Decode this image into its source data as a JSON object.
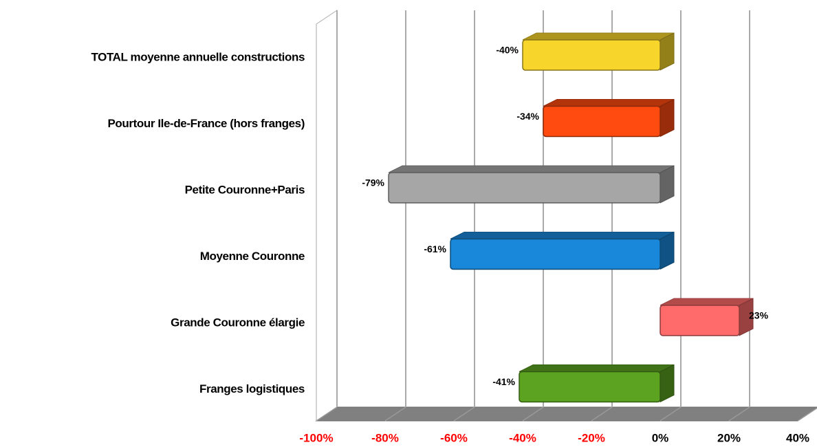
{
  "chart_data": {
    "type": "bar",
    "orientation": "horizontal",
    "categories": [
      "TOTAL moyenne annuelle constructions",
      "Pourtour Ile-de-France (hors franges)",
      "Petite Couronne+Paris",
      "Moyenne Couronne",
      "Grande Couronne élargie",
      "Franges logistiques"
    ],
    "values": [
      -40,
      -34,
      -79,
      -61,
      23,
      -41
    ],
    "value_labels": [
      "-40%",
      "-34%",
      "-79%",
      "-61%",
      "23%",
      "-41%"
    ],
    "colors": [
      "#f7d52a",
      "#ff4a10",
      "#a6a6a6",
      "#1a88da",
      "#ff6b6b",
      "#5ba321"
    ],
    "xlim": [
      -100,
      40
    ],
    "xticks": [
      {
        "value": -100,
        "label": "-100%"
      },
      {
        "value": -80,
        "label": "-80%"
      },
      {
        "value": -60,
        "label": "-60%"
      },
      {
        "value": -40,
        "label": "-40%"
      },
      {
        "value": -20,
        "label": "-20%"
      },
      {
        "value": 0,
        "label": "0%"
      },
      {
        "value": 20,
        "label": "20%"
      },
      {
        "value": 40,
        "label": "40%"
      }
    ],
    "negative_tick_color": "#ff0000",
    "positive_tick_color": "#000000",
    "grid": true
  }
}
